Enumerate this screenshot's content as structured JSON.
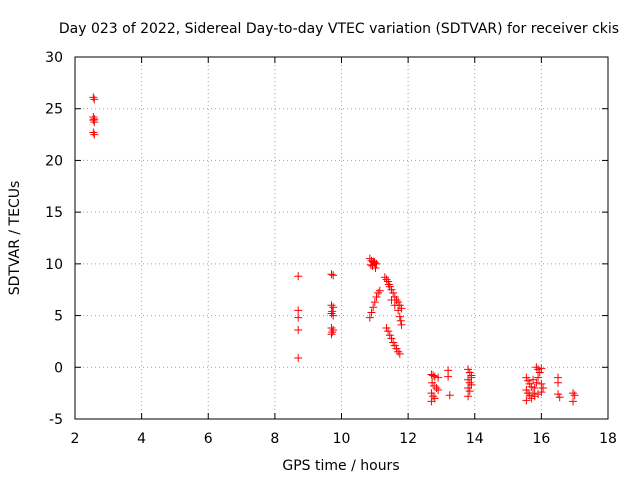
{
  "colors": {
    "points": "#ff0000",
    "grid": "#a0a0a0",
    "axis": "#000000"
  },
  "chart_data": {
    "type": "scatter",
    "title": "Day 023 of 2022, Sidereal Day-to-day VTEC variation (SDTVAR) for receiver ckis",
    "xlabel": "GPS time / hours",
    "ylabel": "SDTVAR / TECUs",
    "xlim": [
      2,
      18
    ],
    "ylim": [
      -5,
      30
    ],
    "xticks": [
      2,
      4,
      6,
      8,
      10,
      12,
      14,
      16,
      18
    ],
    "yticks": [
      -5,
      0,
      5,
      10,
      15,
      20,
      25,
      30
    ],
    "xtick_labels": [
      "2",
      "4",
      "6",
      "8",
      "10",
      "12",
      "14",
      "16",
      "18"
    ],
    "ytick_labels": [
      "-5",
      "0",
      "5",
      "10",
      "15",
      "20",
      "25",
      "30"
    ],
    "grid": true,
    "marker": "+",
    "series": [
      {
        "name": "SDTVAR",
        "points": [
          [
            2.55,
            26.1
          ],
          [
            2.58,
            25.9
          ],
          [
            2.55,
            24.2
          ],
          [
            2.58,
            24.0
          ],
          [
            2.55,
            23.9
          ],
          [
            2.58,
            23.7
          ],
          [
            2.55,
            22.7
          ],
          [
            2.58,
            22.5
          ],
          [
            8.7,
            8.8
          ],
          [
            8.7,
            5.5
          ],
          [
            8.7,
            4.8
          ],
          [
            8.7,
            3.6
          ],
          [
            8.7,
            0.9
          ],
          [
            9.7,
            9.0
          ],
          [
            9.75,
            8.9
          ],
          [
            9.7,
            6.0
          ],
          [
            9.75,
            5.8
          ],
          [
            9.72,
            5.4
          ],
          [
            9.7,
            5.2
          ],
          [
            9.75,
            5.0
          ],
          [
            9.7,
            3.8
          ],
          [
            9.75,
            3.6
          ],
          [
            9.72,
            3.4
          ],
          [
            9.7,
            3.2
          ],
          [
            10.85,
            10.5
          ],
          [
            10.9,
            10.3
          ],
          [
            10.95,
            10.2
          ],
          [
            11.0,
            10.1
          ],
          [
            11.05,
            10.0
          ],
          [
            10.88,
            9.9
          ],
          [
            10.93,
            9.8
          ],
          [
            10.98,
            10.2
          ],
          [
            11.02,
            9.6
          ],
          [
            10.85,
            4.8
          ],
          [
            10.9,
            5.3
          ],
          [
            10.95,
            5.8
          ],
          [
            11.0,
            6.3
          ],
          [
            11.05,
            6.8
          ],
          [
            11.1,
            7.2
          ],
          [
            11.15,
            7.4
          ],
          [
            11.3,
            8.7
          ],
          [
            11.35,
            8.5
          ],
          [
            11.4,
            8.3
          ],
          [
            11.42,
            8.0
          ],
          [
            11.45,
            7.8
          ],
          [
            11.5,
            7.5
          ],
          [
            11.55,
            7.2
          ],
          [
            11.6,
            6.8
          ],
          [
            11.65,
            6.5
          ],
          [
            11.7,
            6.3
          ],
          [
            11.75,
            6.0
          ],
          [
            11.8,
            5.7
          ],
          [
            11.5,
            6.5
          ],
          [
            11.6,
            6.0
          ],
          [
            11.7,
            5.5
          ],
          [
            11.75,
            4.9
          ],
          [
            11.78,
            4.5
          ],
          [
            11.8,
            4.1
          ],
          [
            11.35,
            3.8
          ],
          [
            11.4,
            3.5
          ],
          [
            11.45,
            3.1
          ],
          [
            11.5,
            2.8
          ],
          [
            11.55,
            2.4
          ],
          [
            11.6,
            2.1
          ],
          [
            11.65,
            1.8
          ],
          [
            11.7,
            1.5
          ],
          [
            11.75,
            1.3
          ],
          [
            12.7,
            -0.7
          ],
          [
            12.75,
            -0.8
          ],
          [
            12.8,
            -0.9
          ],
          [
            12.9,
            -1.0
          ],
          [
            12.72,
            -1.5
          ],
          [
            12.78,
            -1.8
          ],
          [
            12.85,
            -2.0
          ],
          [
            12.9,
            -2.2
          ],
          [
            12.7,
            -2.5
          ],
          [
            12.75,
            -2.8
          ],
          [
            12.8,
            -3.0
          ],
          [
            12.7,
            -3.3
          ],
          [
            13.2,
            -0.3
          ],
          [
            13.2,
            -0.9
          ],
          [
            13.25,
            -2.7
          ],
          [
            13.8,
            -0.2
          ],
          [
            13.85,
            -0.5
          ],
          [
            13.9,
            -0.8
          ],
          [
            13.8,
            -1.2
          ],
          [
            13.85,
            -1.5
          ],
          [
            13.9,
            -1.7
          ],
          [
            13.8,
            -2.0
          ],
          [
            13.85,
            -2.3
          ],
          [
            13.8,
            -2.8
          ],
          [
            13.9,
            -1.0
          ],
          [
            15.55,
            -1.0
          ],
          [
            15.6,
            -1.3
          ],
          [
            15.65,
            -1.6
          ],
          [
            15.7,
            -1.9
          ],
          [
            15.55,
            -2.2
          ],
          [
            15.6,
            -2.5
          ],
          [
            15.65,
            -2.7
          ],
          [
            15.7,
            -3.0
          ],
          [
            15.55,
            -3.2
          ],
          [
            15.75,
            -2.5
          ],
          [
            15.8,
            -2.0
          ],
          [
            15.85,
            -1.5
          ],
          [
            15.9,
            -1.0
          ],
          [
            15.95,
            -0.5
          ],
          [
            16.0,
            -0.1
          ],
          [
            15.85,
            0.0
          ],
          [
            15.9,
            -0.2
          ],
          [
            15.8,
            -2.8
          ],
          [
            15.9,
            -2.6
          ],
          [
            16.0,
            -2.4
          ],
          [
            16.05,
            -2.0
          ],
          [
            15.75,
            -1.2
          ],
          [
            16.0,
            -1.6
          ],
          [
            16.5,
            -1.0
          ],
          [
            16.5,
            -1.5
          ],
          [
            16.5,
            -2.6
          ],
          [
            16.55,
            -2.9
          ],
          [
            16.95,
            -2.5
          ],
          [
            17.0,
            -2.7
          ],
          [
            16.95,
            -3.3
          ]
        ]
      }
    ]
  }
}
